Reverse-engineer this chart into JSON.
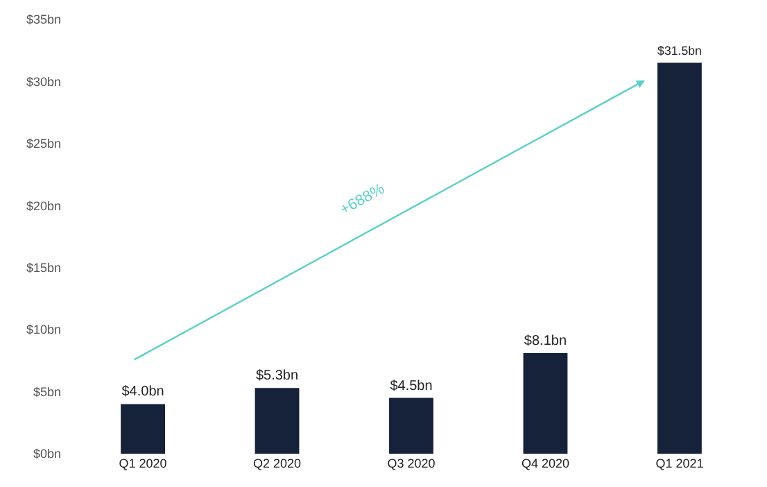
{
  "chart_data": {
    "type": "bar",
    "categories": [
      "Q1 2020",
      "Q2 2020",
      "Q3 2020",
      "Q4 2020",
      "Q1 2021"
    ],
    "values": [
      4.0,
      5.3,
      4.5,
      8.1,
      31.5
    ],
    "value_labels": [
      "$4.0bn",
      "$5.3bn",
      "$4.5bn",
      "$8.1bn",
      "$31.5bn"
    ],
    "color": "#16213a",
    "ylim": [
      0,
      35
    ],
    "yticks": [
      {
        "value": 0,
        "label": "$0bn"
      },
      {
        "value": 5,
        "label": "$5bn"
      },
      {
        "value": 10,
        "label": "$10bn"
      },
      {
        "value": 15,
        "label": "$15bn"
      },
      {
        "value": 20,
        "label": "$20bn"
      },
      {
        "value": 25,
        "label": "$25bn"
      },
      {
        "value": 30,
        "label": "$30bn"
      },
      {
        "value": 35,
        "label": "$35bn"
      }
    ],
    "annotations": [
      "+688%"
    ],
    "grid": false
  }
}
